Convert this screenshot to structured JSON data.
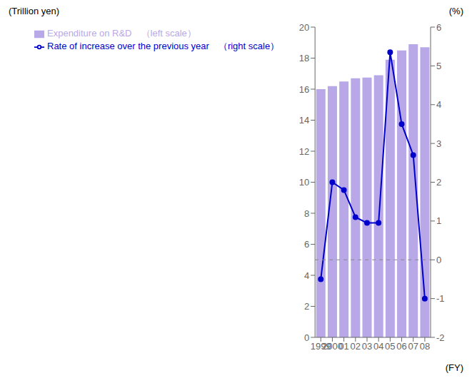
{
  "chart_data": {
    "type": "bar",
    "categories": [
      "1999",
      "2000",
      "01",
      "02",
      "03",
      "04",
      "05",
      "06",
      "07",
      "08"
    ],
    "series": [
      {
        "name": "Expenditure on R&D　（left scale）",
        "type": "bar",
        "color": "#b8a8e8",
        "values": [
          16.0,
          16.2,
          16.5,
          16.7,
          16.75,
          16.9,
          17.9,
          18.5,
          18.9,
          18.7
        ]
      },
      {
        "name": "Rate of increase over the previous year　（right scale）",
        "type": "line",
        "color": "#0000cc",
        "marker": "circle",
        "axis": "y2",
        "values": [
          -0.5,
          2.0,
          1.8,
          1.1,
          0.95,
          0.95,
          5.35,
          3.5,
          2.7,
          -1.0
        ]
      }
    ],
    "ylabel": "(Trillion yen)",
    "y2label": "(%)",
    "xlabel": "(FY)",
    "ylim": [
      0,
      20
    ],
    "yticks": [
      0,
      2,
      4,
      6,
      8,
      10,
      12,
      14,
      16,
      18,
      20
    ],
    "y2lim": [
      -2,
      6
    ],
    "y2ticks": [
      -2,
      -1,
      0,
      1,
      2,
      3,
      4,
      5,
      6
    ],
    "hlines": [
      {
        "y": 5.0,
        "color": "#888888",
        "line_style": "dashed"
      }
    ],
    "legend": "upper left",
    "grid": false
  }
}
